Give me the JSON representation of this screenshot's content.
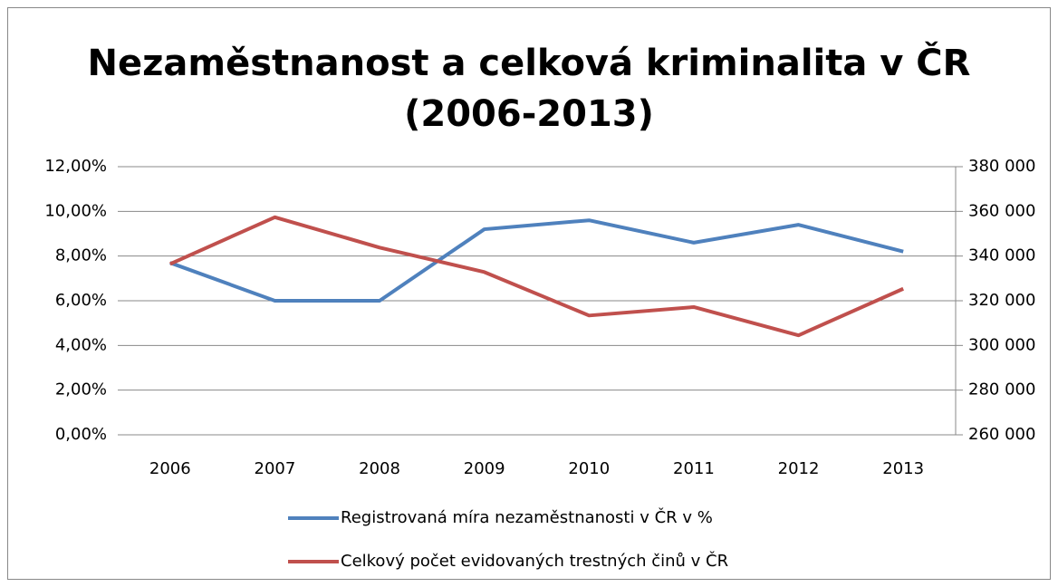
{
  "chart_data": {
    "type": "line",
    "title": [
      "Nezaměstnanost a celková kriminalita v ČR",
      "(2006-2013)"
    ],
    "categories": [
      "2006",
      "2007",
      "2008",
      "2009",
      "2010",
      "2011",
      "2012",
      "2013"
    ],
    "series": [
      {
        "name": "Registrovaná míra nezaměstnanosti v ČR v %",
        "color": "#4f81bd",
        "values": [
          7.7,
          6.0,
          6.0,
          9.2,
          9.6,
          8.6,
          9.4,
          8.2
        ]
      },
      {
        "name": "Celkový počet evidovaných trestných činů v ČR",
        "color": "#c0504d",
        "axis": "y2",
        "values": [
          336446,
          357391,
          343799,
          332829,
          313387,
          317177,
          304528,
          325366
        ]
      }
    ],
    "ylim": [
      0,
      12
    ],
    "yticks": [
      {
        "value": 0,
        "label": "0,00%"
      },
      {
        "value": 2,
        "label": "2,00%"
      },
      {
        "value": 4,
        "label": "4,00%"
      },
      {
        "value": 6,
        "label": "6,00%"
      },
      {
        "value": 8,
        "label": "8,00%"
      },
      {
        "value": 10,
        "label": "10,00%"
      },
      {
        "value": 12,
        "label": "12,00%"
      }
    ],
    "y2lim": [
      260000,
      380000
    ],
    "y2ticks": [
      {
        "value": 260000,
        "label": "260 000"
      },
      {
        "value": 280000,
        "label": "280 000"
      },
      {
        "value": 300000,
        "label": "300 000"
      },
      {
        "value": 320000,
        "label": "320 000"
      },
      {
        "value": 340000,
        "label": "340 000"
      },
      {
        "value": 360000,
        "label": "360 000"
      },
      {
        "value": 380000,
        "label": "380 000"
      }
    ],
    "grid": true,
    "legend": "bottom"
  }
}
